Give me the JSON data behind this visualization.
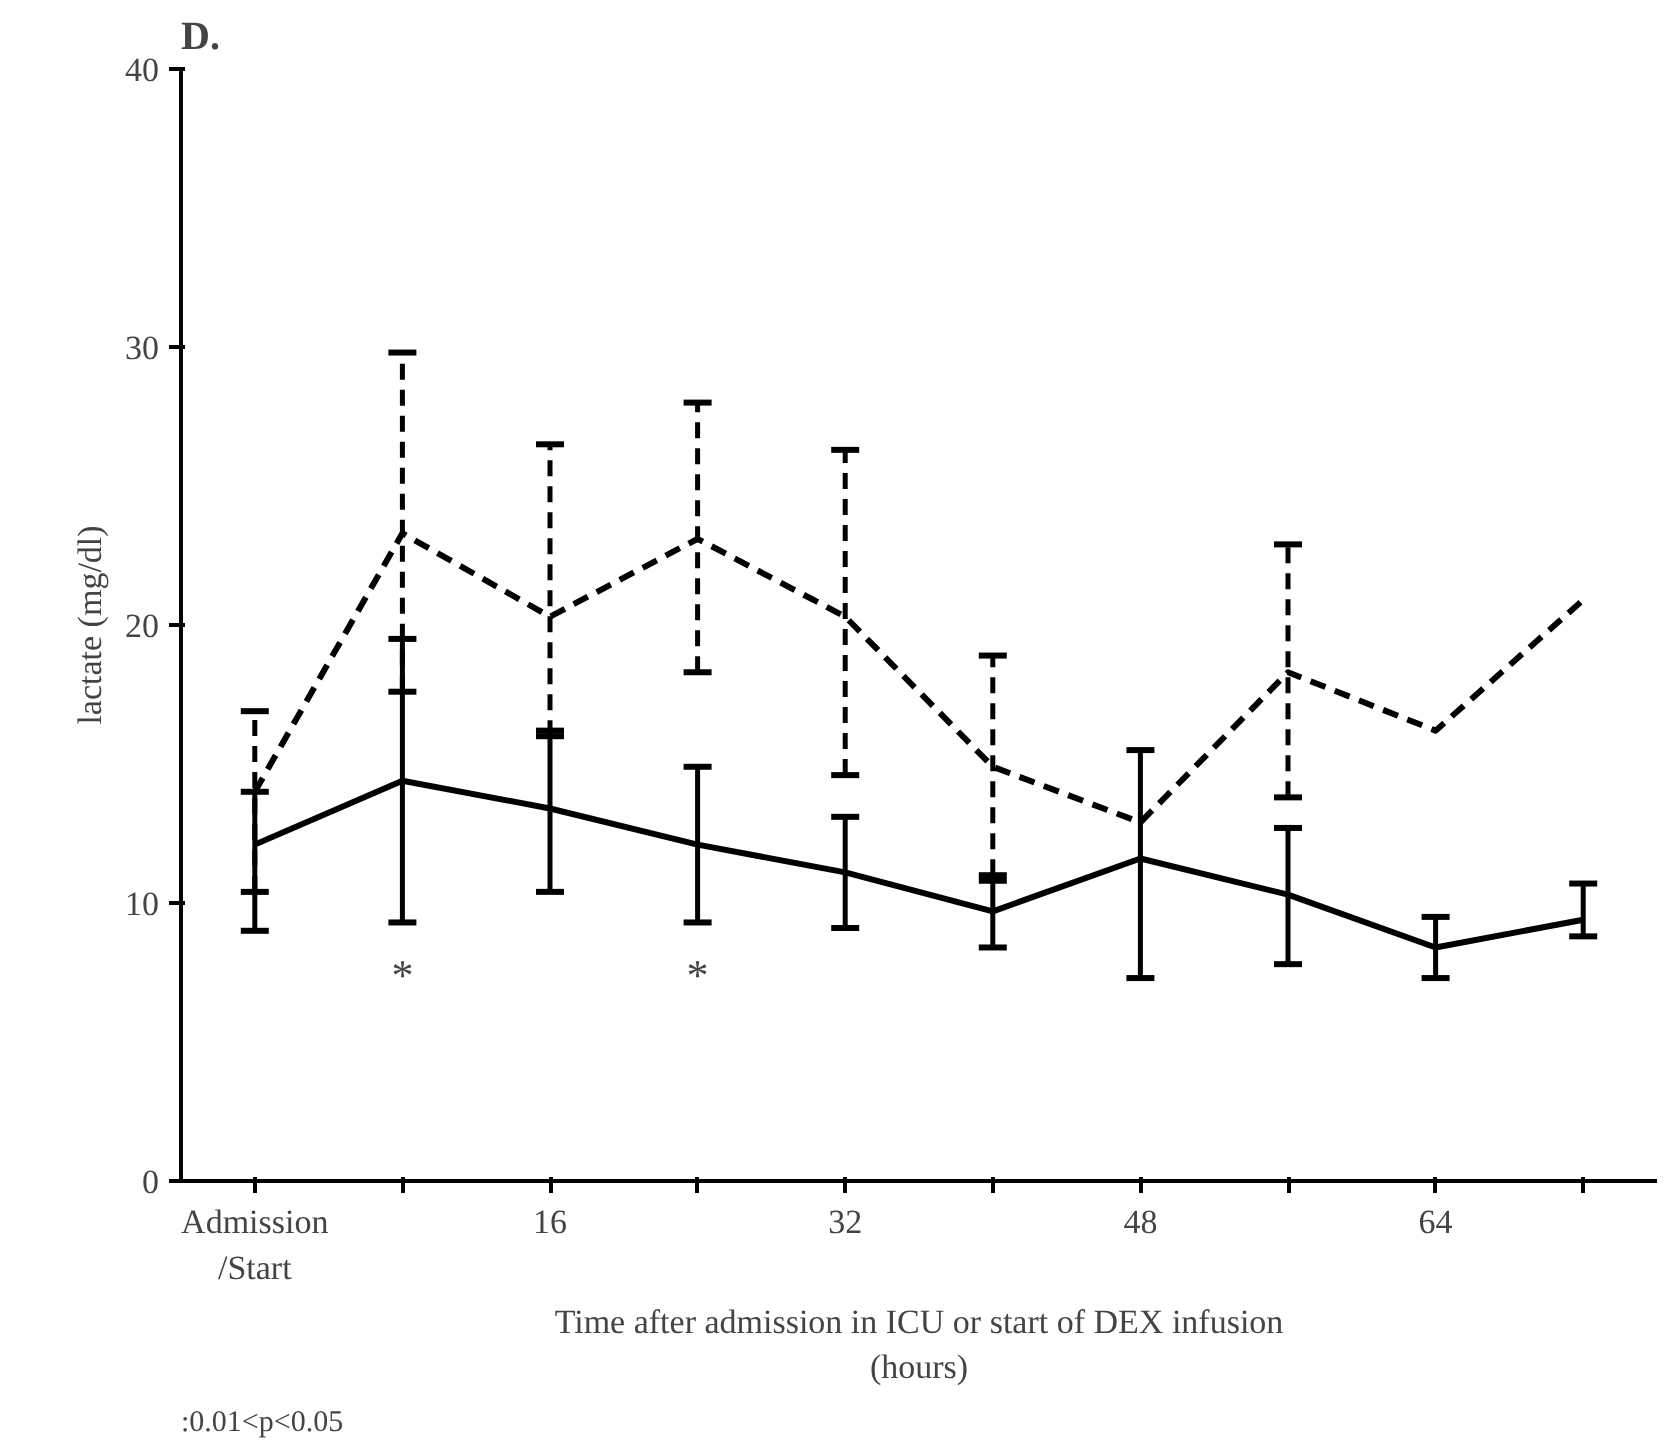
{
  "chart_data": {
    "type": "line",
    "title": "D.",
    "xlabel": "Time after admission in ICU or start of DEX infusion\n(hours)",
    "ylabel": "lactate (mg/dl)",
    "x": [
      0,
      8,
      16,
      24,
      32,
      40,
      48,
      56,
      64,
      72
    ],
    "series": [
      {
        "color": "#000000",
        "line_style": "solid",
        "values": [
          12.1,
          14.4,
          13.4,
          12.1,
          11.1,
          9.7,
          11.6,
          10.3,
          8.4,
          9.4
        ],
        "errors": [
          [
            9.0,
            14.0
          ],
          [
            9.3,
            19.5
          ],
          [
            10.4,
            16.2
          ],
          [
            9.3,
            14.9
          ],
          [
            9.1,
            13.1
          ],
          [
            8.4,
            10.8
          ],
          [
            7.3,
            15.5
          ],
          [
            7.8,
            12.7
          ],
          [
            7.3,
            9.5
          ],
          [
            8.8,
            10.7
          ]
        ]
      },
      {
        "color": "#000000",
        "line_style": "dashed",
        "values": [
          14.0,
          23.3,
          20.3,
          23.1,
          20.3,
          14.9,
          12.9,
          18.3,
          16.2,
          20.9
        ],
        "errors": [
          [
            10.4,
            16.9
          ],
          [
            17.6,
            29.8
          ],
          [
            16.0,
            26.5
          ],
          [
            18.3,
            28.0
          ],
          [
            14.6,
            26.3
          ],
          [
            11.0,
            18.9
          ],
          null,
          [
            13.8,
            22.9
          ],
          null,
          null
        ]
      }
    ],
    "xlim": [
      -4,
      76
    ],
    "xticks": [
      {
        "value": 0,
        "label": "Admission\n/Start"
      },
      {
        "value": 8,
        "label": null
      },
      16,
      {
        "value": 24,
        "label": null
      },
      32,
      {
        "value": 40,
        "label": null
      },
      48,
      {
        "value": 56,
        "label": null
      },
      64,
      {
        "value": 72,
        "label": null
      }
    ],
    "ylim": [
      0,
      40
    ],
    "yticks": [
      0,
      10,
      20,
      30,
      40
    ],
    "annotations": [
      {
        "text": "*",
        "x": 8,
        "y": 9.3
      },
      {
        "text": "*",
        "x": 24,
        "y": 9.3
      },
      ":0.01<p<0.05"
    ],
    "marker": "none",
    "grid": false
  }
}
